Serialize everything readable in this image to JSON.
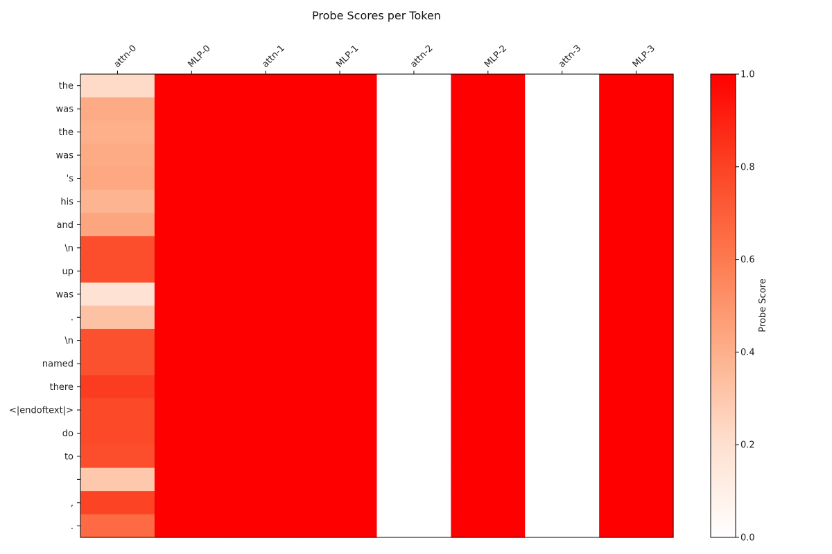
{
  "chart_data": {
    "type": "heatmap",
    "title": "Probe Scores per Token",
    "columns": [
      "attn-0",
      "MLP-0",
      "attn-1",
      "MLP-1",
      "attn-2",
      "MLP-2",
      "attn-3",
      "MLP-3"
    ],
    "rows": [
      "the",
      "was",
      "the",
      "was",
      "'s",
      "his",
      "and",
      "\\n",
      "up",
      "was",
      ".",
      "\\n",
      "named",
      "there",
      "<|endoftext|>",
      "do",
      "to",
      "",
      ",",
      "."
    ],
    "highlighted_rows": [
      7,
      8,
      9,
      11,
      12
    ],
    "column_values": [
      [
        0.22,
        0.42,
        0.4,
        0.42,
        0.43,
        0.38,
        0.44,
        0.76,
        0.76,
        0.18,
        0.33,
        0.75,
        0.75,
        0.82,
        0.78,
        0.78,
        0.76,
        0.3,
        0.8,
        0.66
      ],
      [
        1,
        1,
        1,
        1,
        1,
        1,
        1,
        1,
        1,
        1,
        1,
        1,
        1,
        1,
        1,
        1,
        1,
        1,
        1,
        1
      ],
      [
        1,
        1,
        1,
        1,
        1,
        1,
        1,
        1,
        1,
        1,
        1,
        1,
        1,
        1,
        1,
        1,
        1,
        1,
        1,
        1
      ],
      [
        1,
        1,
        1,
        1,
        1,
        1,
        1,
        1,
        1,
        1,
        1,
        1,
        1,
        1,
        1,
        1,
        1,
        1,
        1,
        1
      ],
      [
        0,
        0,
        0,
        0,
        0,
        0,
        0,
        0,
        0,
        0,
        0,
        0,
        0,
        0,
        0,
        0,
        0,
        0,
        0,
        0
      ],
      [
        1,
        1,
        1,
        1,
        1,
        1,
        1,
        1,
        1,
        1,
        1,
        1,
        1,
        1,
        1,
        1,
        1,
        1,
        1,
        1
      ],
      [
        0,
        0,
        0,
        0,
        0,
        0,
        0,
        0,
        0,
        0,
        0,
        0,
        0,
        0,
        0,
        0,
        0,
        0,
        0,
        0
      ],
      [
        1,
        1,
        1,
        1,
        1,
        1,
        1,
        1,
        1,
        1,
        1,
        1,
        1,
        1,
        1,
        1,
        1,
        1,
        1,
        1
      ]
    ],
    "colorbar": {
      "label": "Probe Score",
      "range": [
        0.0,
        1.0
      ],
      "ticks": [
        "0.0",
        "0.2",
        "0.4",
        "0.6",
        "0.8",
        "1.0"
      ],
      "color_low": "#ffffff",
      "color_high": "#ff0000"
    },
    "highlight_color": "#e8231e",
    "grid": false
  }
}
